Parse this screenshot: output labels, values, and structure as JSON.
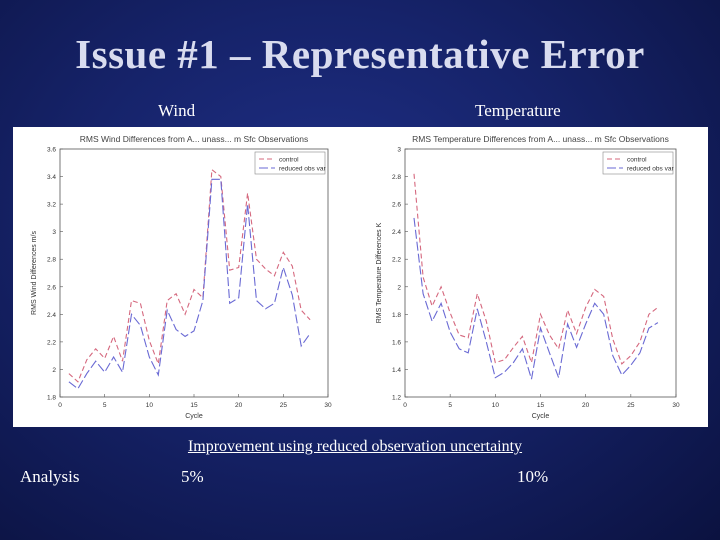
{
  "slide": {
    "title": "Issue #1 – Representative Error",
    "wind_label": "Wind",
    "temperature_label": "Temperature",
    "improvement_text": "Improvement using reduced observation uncertainty",
    "analysis_label": "Analysis",
    "wind_improvement": "5%",
    "temperature_improvement": "10%"
  },
  "colors": {
    "control": "#d5687e",
    "reduced": "#6a6ad4",
    "axis": "#555555"
  },
  "chart_data": [
    {
      "type": "line",
      "title": "RMS Wind Differences from A... unass... m Sfc Observations",
      "xlabel": "Cycle",
      "ylabel": "RMS Wind Differences m/s",
      "xlim": [
        0,
        30
      ],
      "ylim": [
        1.8,
        3.6
      ],
      "xticks": [
        "0",
        "5",
        "10",
        "15",
        "20",
        "25",
        "30"
      ],
      "yticks": [
        "1.8",
        "2",
        "2.2",
        "2.4",
        "2.6",
        "2.8",
        "3",
        "3.2",
        "3.4",
        "3.6"
      ],
      "legend_position": "top-right",
      "x": [
        1,
        2,
        3,
        4,
        5,
        6,
        7,
        8,
        9,
        10,
        11,
        12,
        13,
        14,
        15,
        16,
        17,
        18,
        19,
        20,
        21,
        22,
        23,
        24,
        25,
        26,
        27,
        28
      ],
      "series": [
        {
          "name": "control",
          "values": [
            1.97,
            1.91,
            2.07,
            2.15,
            2.08,
            2.24,
            2.06,
            2.5,
            2.48,
            2.21,
            2.04,
            2.5,
            2.55,
            2.4,
            2.58,
            2.52,
            3.45,
            3.4,
            2.72,
            2.74,
            3.28,
            2.8,
            2.73,
            2.68,
            2.85,
            2.75,
            2.43,
            2.36
          ]
        },
        {
          "name": "reduced obs var",
          "values": [
            1.91,
            1.86,
            1.97,
            2.06,
            1.98,
            2.09,
            1.98,
            2.4,
            2.32,
            2.09,
            1.96,
            2.43,
            2.29,
            2.24,
            2.28,
            2.5,
            3.38,
            3.38,
            2.48,
            2.52,
            3.2,
            2.5,
            2.44,
            2.48,
            2.74,
            2.54,
            2.17,
            2.26
          ]
        }
      ]
    },
    {
      "type": "line",
      "title": "RMS Temperature Differences from A... unass... m Sfc Observations",
      "xlabel": "Cycle",
      "ylabel": "RMS Temperature Differences K",
      "xlim": [
        0,
        30
      ],
      "ylim": [
        1.2,
        3
      ],
      "xticks": [
        "0",
        "5",
        "10",
        "15",
        "20",
        "25",
        "30"
      ],
      "yticks": [
        "1.2",
        "1.4",
        "1.6",
        "1.8",
        "2",
        "2.2",
        "2.4",
        "2.6",
        "2.8",
        "3"
      ],
      "legend_position": "top-right",
      "x": [
        1,
        2,
        3,
        4,
        5,
        6,
        7,
        8,
        9,
        10,
        11,
        12,
        13,
        14,
        15,
        16,
        17,
        18,
        19,
        20,
        21,
        22,
        23,
        24,
        25,
        26,
        27,
        28
      ],
      "series": [
        {
          "name": "control",
          "values": [
            2.82,
            2.07,
            1.86,
            2.0,
            1.81,
            1.65,
            1.63,
            1.95,
            1.75,
            1.45,
            1.47,
            1.56,
            1.64,
            1.45,
            1.8,
            1.65,
            1.55,
            1.83,
            1.66,
            1.85,
            1.98,
            1.93,
            1.62,
            1.44,
            1.5,
            1.6,
            1.8,
            1.85
          ]
        },
        {
          "name": "reduced obs var",
          "values": [
            2.5,
            1.95,
            1.75,
            1.88,
            1.67,
            1.55,
            1.52,
            1.84,
            1.6,
            1.34,
            1.38,
            1.45,
            1.55,
            1.33,
            1.7,
            1.52,
            1.34,
            1.73,
            1.56,
            1.73,
            1.88,
            1.8,
            1.5,
            1.36,
            1.43,
            1.52,
            1.7,
            1.74
          ]
        }
      ]
    }
  ]
}
